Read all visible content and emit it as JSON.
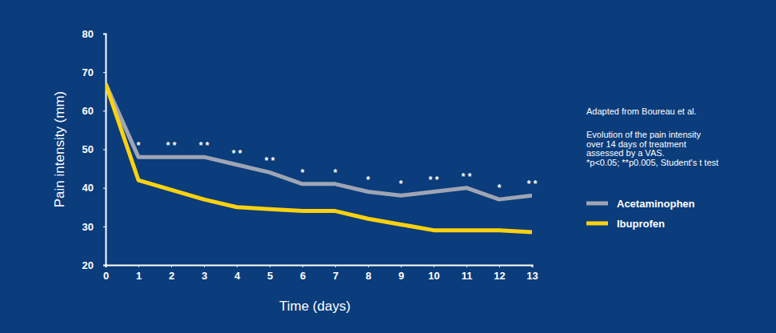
{
  "chart_data": {
    "type": "line",
    "x_label": "Time (days)",
    "y_label": "Pain intensity (mm)",
    "x": [
      0,
      1,
      2,
      3,
      4,
      5,
      6,
      7,
      8,
      9,
      10,
      11,
      12,
      13
    ],
    "series": [
      {
        "name": "Acetaminophen",
        "color": "#9ea5b4",
        "values": [
          67,
          48,
          48,
          48,
          46,
          44,
          41,
          41,
          39,
          38,
          39,
          40,
          37,
          38
        ]
      },
      {
        "name": "Ibuprofen",
        "color": "#fcd20f",
        "values": [
          67,
          42,
          39.5,
          37,
          35,
          34.5,
          34,
          34,
          32,
          30.5,
          29,
          29,
          29,
          28.5
        ]
      }
    ],
    "xlim": [
      0,
      13
    ],
    "xticks": [
      0,
      1,
      2,
      3,
      4,
      5,
      6,
      7,
      8,
      9,
      10,
      11,
      12,
      13
    ],
    "ylim": [
      20,
      80
    ],
    "yticks": [
      20,
      30,
      40,
      50,
      60,
      70,
      80
    ],
    "grid": false,
    "legend": "right",
    "annotations": [
      {
        "x": 1,
        "label": "*"
      },
      {
        "x": 2,
        "label": "* *"
      },
      {
        "x": 3,
        "label": "* *"
      },
      {
        "x": 4,
        "label": "* *"
      },
      {
        "x": 5,
        "label": "* *"
      },
      {
        "x": 6,
        "label": "*"
      },
      {
        "x": 7,
        "label": "*"
      },
      {
        "x": 8,
        "label": "*"
      },
      {
        "x": 9,
        "label": "*"
      },
      {
        "x": 10,
        "label": "* *"
      },
      {
        "x": 11,
        "label": "* *"
      },
      {
        "x": 12,
        "label": "*"
      },
      {
        "x": 13,
        "label": "* *"
      }
    ],
    "source": "Adapted from Boureau et al.",
    "note": [
      "Evolution of the pain intensity",
      "over 14 days of treatment",
      "assessed by a  VAS.",
      "*p<0.05; **p0.005, Student's t test"
    ]
  }
}
